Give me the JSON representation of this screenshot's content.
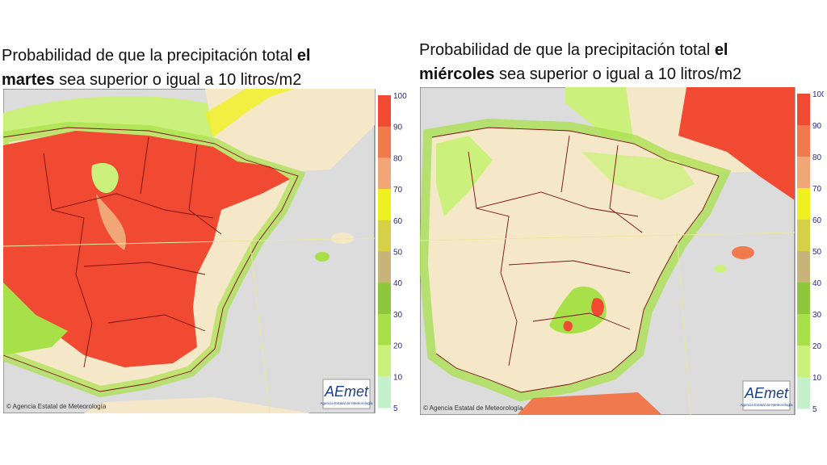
{
  "panels": [
    {
      "title_lines": [
        [
          {
            "text": "Probabilidad de que la precipitación total ",
            "bold": false
          },
          {
            "text": "el",
            "bold": true
          }
        ],
        [
          {
            "text": "martes",
            "bold": true
          },
          {
            "text": " sea superior o igual a 10 litros/m2",
            "bold": false
          }
        ]
      ],
      "legend": [
        100,
        90,
        80,
        70,
        60,
        50,
        40,
        30,
        20,
        10,
        5
      ],
      "legend_colors": [
        "#f04a32",
        "#f07a4e",
        "#f0a676",
        "#f0f020",
        "#d6d048",
        "#c8b47a",
        "#8ec63c",
        "#a8e04a",
        "#ccf07c",
        "#c4f0cc"
      ],
      "credit": "© Agencia Estatal de Meteorología",
      "logo": "AEmet",
      "logo_subtitle": "Agencia Estatal de Meteorología"
    },
    {
      "title_lines": [
        [
          {
            "text": "Probabilidad de que la precipitación total ",
            "bold": false
          },
          {
            "text": "el",
            "bold": true
          }
        ],
        [
          {
            "text": "miércoles",
            "bold": true
          },
          {
            "text": " sea superior o igual a 10 litros/m2",
            "bold": false
          }
        ]
      ],
      "legend": [
        100,
        90,
        80,
        70,
        60,
        50,
        40,
        30,
        20,
        10,
        5
      ],
      "legend_colors": [
        "#f04a32",
        "#f07a4e",
        "#f0a676",
        "#f0f020",
        "#d6d048",
        "#c8b47a",
        "#8ec63c",
        "#a8e04a",
        "#ccf07c",
        "#c4f0cc"
      ],
      "credit": "© Agencia Estatal de Meteorología",
      "logo": "AEmet",
      "logo_subtitle": "Agencia Estatal de Meteorología"
    }
  ]
}
